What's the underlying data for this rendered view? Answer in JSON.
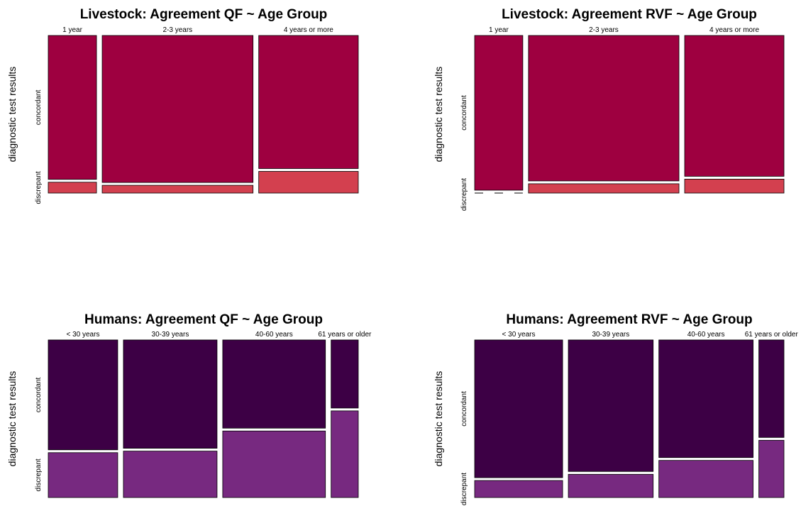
{
  "chart_data": [
    {
      "type": "mosaic",
      "title": "Livestock: Agreement QF ~ Age Group",
      "ylabel": "diagnostic test results",
      "categories": [
        "1 year",
        "2-3 years",
        "4 years or more"
      ],
      "category_shares": [
        0.16,
        0.5,
        0.33
      ],
      "levels": [
        "concordant",
        "discrepant"
      ],
      "discrepant_fraction": [
        0.07,
        0.05,
        0.14
      ],
      "colors": {
        "concordant": "#9e0040",
        "discrepant": "#d3404f"
      }
    },
    {
      "type": "mosaic",
      "title": "Livestock: Agreement RVF ~ Age Group",
      "ylabel": "diagnostic test results",
      "categories": [
        "1 year",
        "2-3 years",
        "4 years or more"
      ],
      "category_shares": [
        0.16,
        0.5,
        0.33
      ],
      "levels": [
        "concordant",
        "discrepant"
      ],
      "discrepant_fraction": [
        0.0,
        0.06,
        0.09
      ],
      "colors": {
        "concordant": "#9e0040",
        "discrepant": "#d3404f"
      }
    },
    {
      "type": "mosaic",
      "title": "Humans: Agreement QF ~ Age Group",
      "ylabel": "diagnostic test results",
      "categories": [
        "< 30 years",
        "30-39 years",
        "40-60 years",
        "61 years or older"
      ],
      "category_shares": [
        0.23,
        0.31,
        0.34,
        0.09
      ],
      "levels": [
        "concordant",
        "discrepant"
      ],
      "discrepant_fraction": [
        0.29,
        0.3,
        0.43,
        0.56
      ],
      "colors": {
        "concordant": "#3d0045",
        "discrepant": "#772980"
      }
    },
    {
      "type": "mosaic",
      "title": "Humans: Agreement RVF ~ Age Group",
      "ylabel": "diagnostic test results",
      "categories": [
        "< 30 years",
        "30-39 years",
        "40-60 years",
        "61 years or older"
      ],
      "category_shares": [
        0.28,
        0.27,
        0.3,
        0.08
      ],
      "levels": [
        "concordant",
        "discrepant"
      ],
      "discrepant_fraction": [
        0.11,
        0.15,
        0.24,
        0.37
      ],
      "colors": {
        "concordant": "#3d0045",
        "discrepant": "#772980"
      }
    }
  ]
}
